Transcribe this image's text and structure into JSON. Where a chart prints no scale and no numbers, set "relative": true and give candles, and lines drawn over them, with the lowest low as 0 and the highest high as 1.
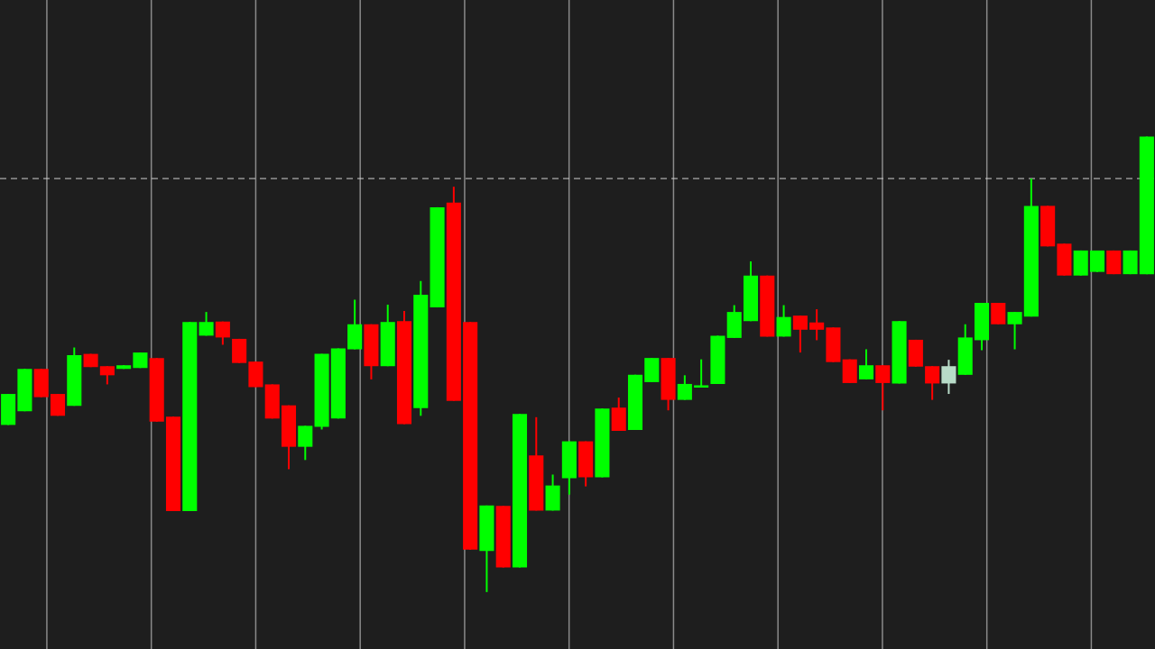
{
  "chart_data": {
    "type": "candlestick",
    "relative": true,
    "grid": "x",
    "categories": [
      null,
      null,
      null,
      null,
      null,
      null,
      null,
      null,
      null,
      null,
      null,
      null,
      null,
      null,
      null,
      null,
      null,
      null,
      null,
      null,
      null,
      null,
      null,
      null,
      null,
      null,
      null,
      null,
      null,
      null,
      null,
      null,
      null,
      null,
      null,
      null,
      null,
      null,
      null,
      null,
      null,
      null,
      null,
      null,
      null,
      null,
      null,
      null,
      null,
      null,
      null,
      null,
      null,
      null,
      null,
      null,
      null,
      null,
      null,
      null,
      null,
      null,
      null,
      null,
      null,
      null,
      null,
      null,
      null,
      null
    ],
    "ohlc": [
      [
        0.367,
        0.435,
        0.367,
        0.435
      ],
      [
        0.397,
        0.49,
        0.397,
        0.49
      ],
      [
        0.49,
        0.49,
        0.428,
        0.428
      ],
      [
        0.435,
        0.435,
        0.387,
        0.387
      ],
      [
        0.409,
        0.537,
        0.409,
        0.52
      ],
      [
        0.523,
        0.523,
        0.494,
        0.494
      ],
      [
        0.496,
        0.496,
        0.456,
        0.476
      ],
      [
        0.49,
        0.498,
        0.49,
        0.498
      ],
      [
        0.492,
        0.526,
        0.492,
        0.526
      ],
      [
        0.514,
        0.514,
        0.374,
        0.374
      ],
      [
        0.385,
        0.385,
        0.178,
        0.178
      ],
      [
        0.178,
        0.593,
        0.178,
        0.593
      ],
      [
        0.563,
        0.615,
        0.563,
        0.593
      ],
      [
        0.594,
        0.594,
        0.543,
        0.559
      ],
      [
        0.556,
        0.556,
        0.503,
        0.503
      ],
      [
        0.506,
        0.506,
        0.45,
        0.45
      ],
      [
        0.456,
        0.456,
        0.381,
        0.381
      ],
      [
        0.41,
        0.41,
        0.27,
        0.319
      ],
      [
        0.319,
        0.365,
        0.29,
        0.365
      ],
      [
        0.363,
        0.523,
        0.357,
        0.523
      ],
      [
        0.381,
        0.535,
        0.381,
        0.535
      ],
      [
        0.533,
        0.642,
        0.533,
        0.588
      ],
      [
        0.588,
        0.588,
        0.467,
        0.496
      ],
      [
        0.496,
        0.631,
        0.496,
        0.593
      ],
      [
        0.595,
        0.617,
        0.369,
        0.369
      ],
      [
        0.404,
        0.683,
        0.387,
        0.653
      ],
      [
        0.625,
        0.845,
        0.625,
        0.845
      ],
      [
        0.855,
        0.89,
        0.42,
        0.42
      ],
      [
        0.593,
        0.593,
        0.093,
        0.093
      ],
      [
        0.09,
        0.19,
        0,
        0.19
      ],
      [
        0.189,
        0.189,
        0.054,
        0.054
      ],
      [
        0.054,
        0.391,
        0.054,
        0.391
      ],
      [
        0.3,
        0.384,
        0.179,
        0.179
      ],
      [
        0.179,
        0.258,
        0.179,
        0.234
      ],
      [
        0.25,
        0.331,
        0.214,
        0.331
      ],
      [
        0.331,
        0.331,
        0.232,
        0.252
      ],
      [
        0.252,
        0.403,
        0.252,
        0.403
      ],
      [
        0.405,
        0.427,
        0.354,
        0.354
      ],
      [
        0.356,
        0.477,
        0.356,
        0.477
      ],
      [
        0.461,
        0.514,
        0.461,
        0.514
      ],
      [
        0.514,
        0.514,
        0.399,
        0.422
      ],
      [
        0.422,
        0.476,
        0.422,
        0.457
      ],
      [
        0.449,
        0.511,
        0.449,
        0.454
      ],
      [
        0.457,
        0.563,
        0.457,
        0.563
      ],
      [
        0.558,
        0.63,
        0.558,
        0.615
      ],
      [
        0.595,
        0.726,
        0.595,
        0.695
      ],
      [
        0.695,
        0.695,
        0.561,
        0.561
      ],
      [
        0.561,
        0.63,
        0.561,
        0.604
      ],
      [
        0.607,
        0.607,
        0.526,
        0.576
      ],
      [
        0.592,
        0.621,
        0.553,
        0.576
      ],
      [
        0.581,
        0.581,
        0.505,
        0.505
      ],
      [
        0.511,
        0.511,
        0.459,
        0.459
      ],
      [
        0.467,
        0.533,
        0.467,
        0.498
      ],
      [
        0.498,
        0.498,
        0.399,
        0.459
      ],
      [
        0.458,
        0.595,
        0.458,
        0.595
      ],
      [
        0.554,
        0.554,
        0.495,
        0.495
      ],
      [
        0.496,
        0.496,
        0.422,
        0.458
      ],
      [
        0.458,
        0.51,
        0.435,
        0.496
      ],
      [
        0.477,
        0.588,
        0.477,
        0.559
      ],
      [
        0.553,
        0.635,
        0.531,
        0.635
      ],
      [
        0.635,
        0.635,
        0.588,
        0.588
      ],
      [
        0.588,
        0.615,
        0.533,
        0.615
      ],
      [
        0.605,
        0.908,
        0.605,
        0.848
      ],
      [
        0.848,
        0.848,
        0.759,
        0.759
      ],
      [
        0.765,
        0.765,
        0.695,
        0.695
      ],
      [
        0.695,
        0.75,
        0.695,
        0.75
      ],
      [
        0.703,
        0.75,
        0.703,
        0.75
      ],
      [
        0.75,
        0.75,
        0.698,
        0.698
      ],
      [
        0.698,
        0.75,
        0.698,
        0.75
      ],
      [
        0.698,
        1.0,
        0.698,
        1.0
      ]
    ],
    "colors": [
      "#00ff00",
      "#00ff00",
      "#ff0000",
      "#ff0000",
      "#00ff00",
      "#ff0000",
      "#ff0000",
      "#00ff00",
      "#00ff00",
      "#ff0000",
      "#ff0000",
      "#00ff00",
      "#00ff00",
      "#ff0000",
      "#ff0000",
      "#ff0000",
      "#ff0000",
      "#ff0000",
      "#00ff00",
      "#00ff00",
      "#00ff00",
      "#00ff00",
      "#ff0000",
      "#00ff00",
      "#ff0000",
      "#00ff00",
      "#00ff00",
      "#ff0000",
      "#ff0000",
      "#00ff00",
      "#ff0000",
      "#00ff00",
      "#ff0000",
      "#00ff00",
      "#00ff00",
      "#ff0000",
      "#00ff00",
      "#ff0000",
      "#00ff00",
      "#00ff00",
      "#ff0000",
      "#00ff00",
      "#00ff00",
      "#00ff00",
      "#00ff00",
      "#00ff00",
      "#ff0000",
      "#00ff00",
      "#ff0000",
      "#ff0000",
      "#ff0000",
      "#ff0000",
      "#00ff00",
      "#ff0000",
      "#00ff00",
      "#ff0000",
      "#ff0000",
      "#b8dcc8",
      "#00ff00",
      "#00ff00",
      "#ff0000",
      "#00ff00",
      "#00ff00",
      "#ff0000",
      "#ff0000",
      "#00ff00",
      "#00ff00",
      "#ff0000",
      "#00ff00",
      "#00ff00"
    ],
    "ref_lines": [
      {
        "axis": "y",
        "value": 0.908,
        "color": "#d0d0d0",
        "line_style": "dashed"
      }
    ]
  }
}
